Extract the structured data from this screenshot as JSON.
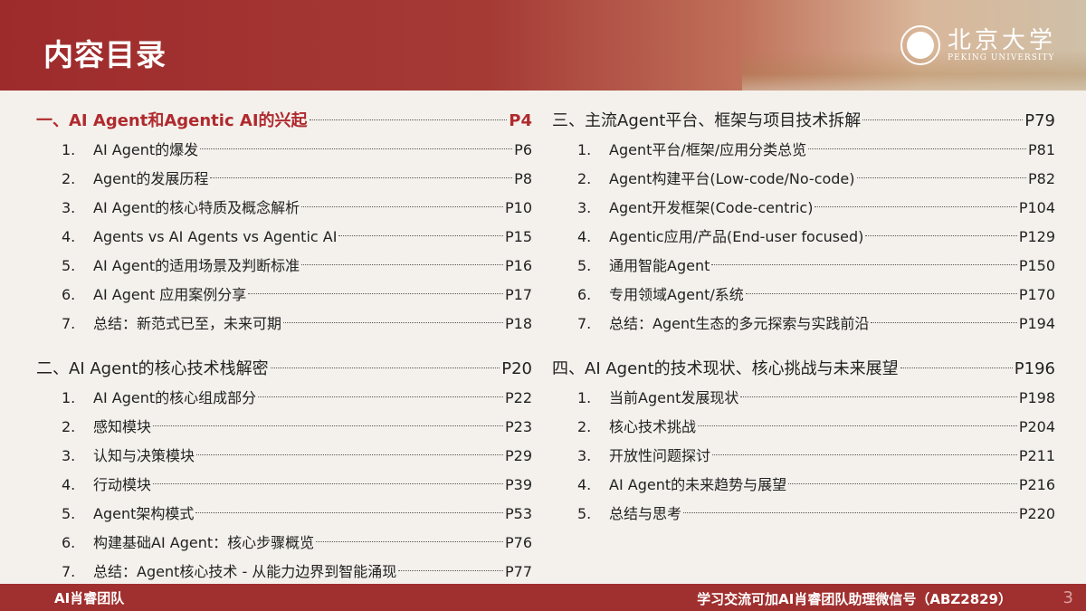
{
  "header": {
    "title": "内容目录",
    "logo_cn": "北京大学",
    "logo_en": "PEKING UNIVERSITY"
  },
  "left": [
    {
      "type": "section",
      "label": "一、AI Agent和Agentic AI的兴起",
      "page": "P4",
      "highlight": true
    },
    {
      "type": "item",
      "num": "1.",
      "label": "AI Agent的爆发",
      "page": "P6"
    },
    {
      "type": "item",
      "num": "2.",
      "label": "Agent的发展历程",
      "page": "P8"
    },
    {
      "type": "item",
      "num": "3.",
      "label": "AI Agent的核心特质及概念解析",
      "page": "P10"
    },
    {
      "type": "item",
      "num": "4.",
      "label": "Agents vs AI Agents vs Agentic AI",
      "page": "P15"
    },
    {
      "type": "item",
      "num": "5.",
      "label": "AI Agent的适用场景及判断标准",
      "page": "P16"
    },
    {
      "type": "item",
      "num": "6.",
      "label": "AI Agent 应用案例分享",
      "page": "P17"
    },
    {
      "type": "item",
      "num": "7.",
      "label": "总结：新范式已至，未来可期",
      "page": "P18"
    },
    {
      "type": "gap"
    },
    {
      "type": "section",
      "label": "二、AI Agent的核心技术栈解密",
      "page": "P20"
    },
    {
      "type": "item",
      "num": "1.",
      "label": "AI Agent的核心组成部分",
      "page": "P22"
    },
    {
      "type": "item",
      "num": "2.",
      "label": "感知模块",
      "page": "P23"
    },
    {
      "type": "item",
      "num": "3.",
      "label": "认知与决策模块",
      "page": "P29"
    },
    {
      "type": "item",
      "num": "4.",
      "label": "行动模块",
      "page": "P39"
    },
    {
      "type": "item",
      "num": "5.",
      "label": "Agent架构模式",
      "page": "P53"
    },
    {
      "type": "item",
      "num": "6.",
      "label": "构建基础AI Agent：核心步骤概览",
      "page": "P76"
    },
    {
      "type": "item",
      "num": "7.",
      "label": "总结：Agent核心技术 - 从能力边界到智能涌现",
      "page": "P77"
    }
  ],
  "right": [
    {
      "type": "section",
      "label": "三、主流Agent平台、框架与项目技术拆解",
      "page": "P79"
    },
    {
      "type": "item",
      "num": "1.",
      "label": "Agent平台/框架/应用分类总览",
      "page": "P81"
    },
    {
      "type": "item",
      "num": "2.",
      "label": "Agent构建平台(Low-code/No-code)",
      "page": "P82"
    },
    {
      "type": "item",
      "num": "3.",
      "label": "Agent开发框架(Code-centric)",
      "page": "P104"
    },
    {
      "type": "item",
      "num": "4.",
      "label": "Agentic应用/产品(End-user focused)",
      "page": "P129"
    },
    {
      "type": "item",
      "num": "5.",
      "label": "通用智能Agent",
      "page": "P150"
    },
    {
      "type": "item",
      "num": "6.",
      "label": "专用领域Agent/系统",
      "page": "P170"
    },
    {
      "type": "item",
      "num": "7.",
      "label": "总结：Agent生态的多元探索与实践前沿",
      "page": "P194"
    },
    {
      "type": "gap"
    },
    {
      "type": "section",
      "label": "四、AI Agent的技术现状、核心挑战与未来展望",
      "page": "P196"
    },
    {
      "type": "item",
      "num": "1.",
      "label": "当前Agent发展现状",
      "page": "P198"
    },
    {
      "type": "item",
      "num": "2.",
      "label": "核心技术挑战",
      "page": "P204"
    },
    {
      "type": "item",
      "num": "3.",
      "label": "开放性问题探讨",
      "page": "P211"
    },
    {
      "type": "item",
      "num": "4.",
      "label": "AI Agent的未来趋势与展望",
      "page": "P216"
    },
    {
      "type": "item",
      "num": "5.",
      "label": "总结与思考",
      "page": "P220"
    }
  ],
  "footer": {
    "left": "AI肖睿团队",
    "right": "学习交流可加AI肖睿团队助理微信号（ABZ2829）",
    "page_number": "3"
  },
  "colors": {
    "brand_red": "#a0302f",
    "highlight": "#b02a2e"
  }
}
